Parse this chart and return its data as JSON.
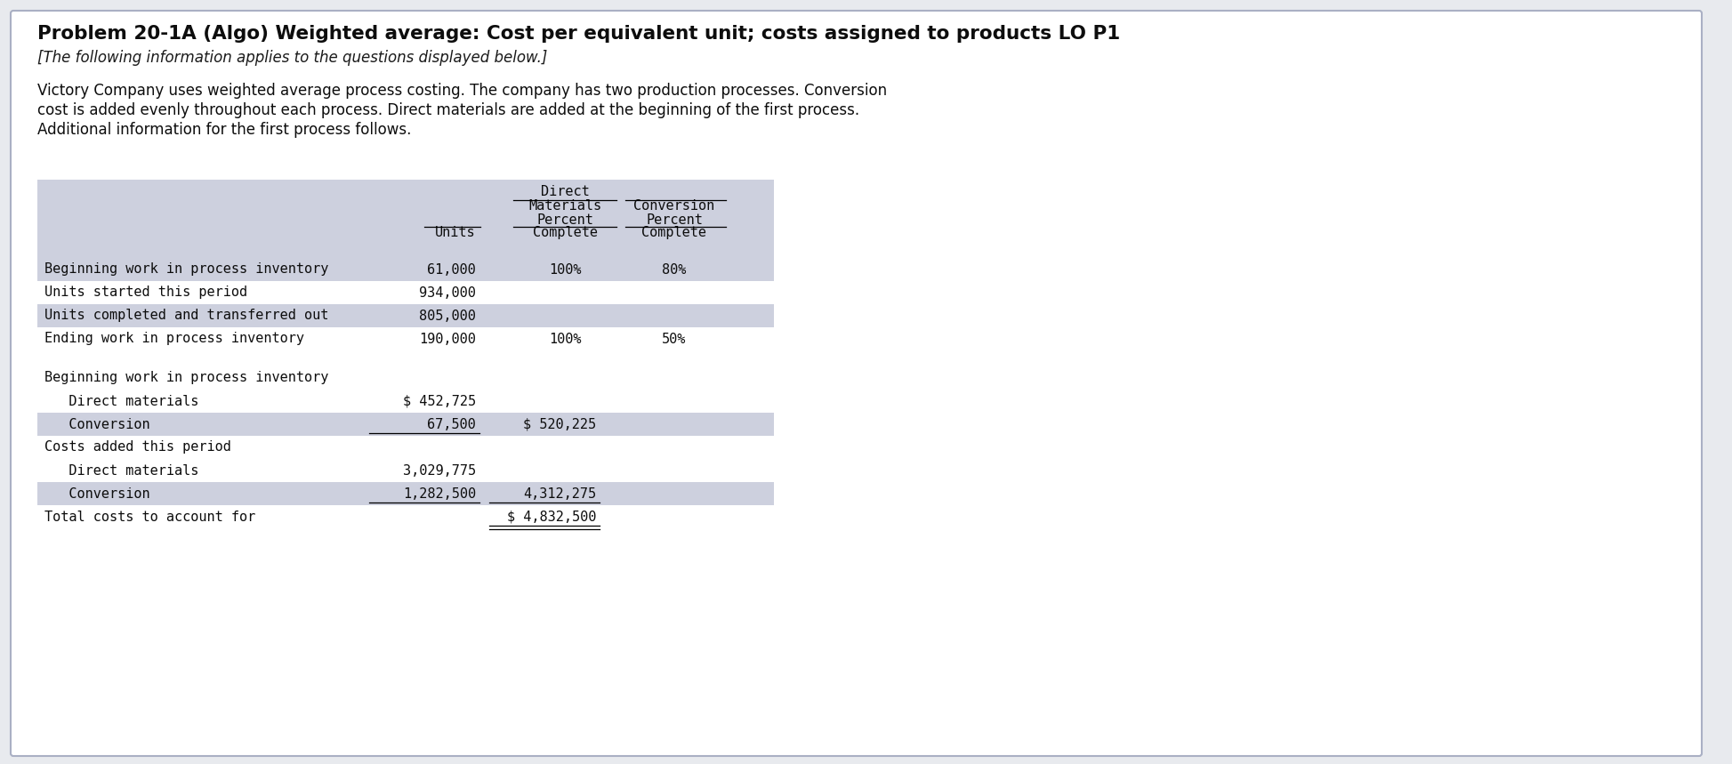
{
  "title": "Problem 20-1A (Algo) Weighted average: Cost per equivalent unit; costs assigned to products LO P1",
  "subtitle": "[The following information applies to the questions displayed below.]",
  "body_line1": "Victory Company uses weighted average process costing. The company has two production processes. Conversion",
  "body_line2": "cost is added evenly throughout each process. Direct materials are added at the beginning of the first process.",
  "body_line3": "Additional information for the first process follows.",
  "table_bg": "#cdd0de",
  "white_bg": "#ffffff",
  "page_bg": "#e8eaee",
  "card_bg": "#ffffff",
  "data_rows": [
    {
      "label": "Beginning work in process inventory",
      "units": "61,000",
      "dm": "100%",
      "conv": "80%",
      "bg": "#cdd0de"
    },
    {
      "label": "Units started this period",
      "units": "934,000",
      "dm": "",
      "conv": "",
      "bg": "#ffffff"
    },
    {
      "label": "Units completed and transferred out",
      "units": "805,000",
      "dm": "",
      "conv": "",
      "bg": "#cdd0de"
    },
    {
      "label": "Ending work in process inventory",
      "units": "190,000",
      "dm": "100%",
      "conv": "50%",
      "bg": "#ffffff"
    }
  ],
  "cost_rows": [
    {
      "label": "Beginning work in process inventory",
      "indent": false,
      "c1": "",
      "c2": "",
      "ul1": false,
      "ul2": false,
      "dul2": false,
      "bg": "#ffffff"
    },
    {
      "label": "   Direct materials",
      "indent": true,
      "c1": "$ 452,725",
      "c2": "",
      "ul1": false,
      "ul2": false,
      "dul2": false,
      "bg": "#ffffff"
    },
    {
      "label": "   Conversion",
      "indent": true,
      "c1": "67,500",
      "c2": "$ 520,225",
      "ul1": true,
      "ul2": false,
      "dul2": false,
      "bg": "#cdd0de"
    },
    {
      "label": "Costs added this period",
      "indent": false,
      "c1": "",
      "c2": "",
      "ul1": false,
      "ul2": false,
      "dul2": false,
      "bg": "#ffffff"
    },
    {
      "label": "   Direct materials",
      "indent": true,
      "c1": "3,029,775",
      "c2": "",
      "ul1": false,
      "ul2": false,
      "dul2": false,
      "bg": "#ffffff"
    },
    {
      "label": "   Conversion",
      "indent": true,
      "c1": "1,282,500",
      "c2": "4,312,275",
      "ul1": true,
      "ul2": true,
      "dul2": false,
      "bg": "#cdd0de"
    },
    {
      "label": "Total costs to account for",
      "indent": false,
      "c1": "",
      "c2": "$ 4,832,500",
      "ul1": false,
      "ul2": false,
      "dul2": true,
      "bg": "#ffffff"
    }
  ]
}
